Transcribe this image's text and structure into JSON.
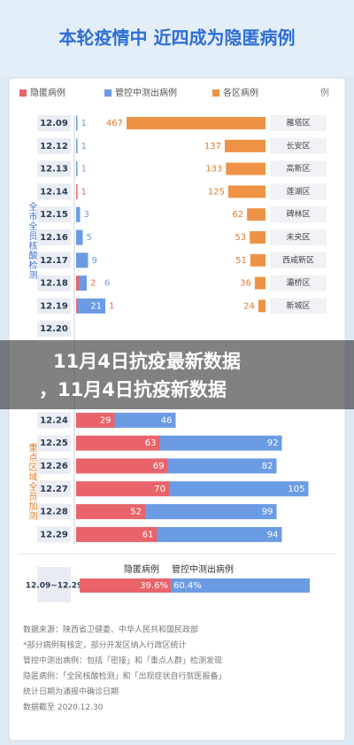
{
  "chart_data": {
    "type": "stacked-hbar",
    "title": "本轮疫情中 近四成为隐匿病例",
    "unit": "例",
    "categories": [
      "12.09",
      "12.12",
      "12.13",
      "12.14",
      "12.15",
      "12.16",
      "12.17",
      "12.18",
      "12.19",
      "12.20",
      null,
      null,
      null,
      "12.24",
      "12.25",
      "12.26",
      "12.27",
      "12.28",
      "12.29"
    ],
    "series": [
      {
        "name": "隐匿病例",
        "color": "#e8646a",
        "values": [
          null,
          null,
          null,
          1,
          null,
          null,
          null,
          2,
          1,
          null,
          null,
          null,
          null,
          29,
          63,
          69,
          70,
          52,
          61
        ]
      },
      {
        "name": "管控中测出病例",
        "color": "#6b9be3",
        "values": [
          1,
          1,
          1,
          null,
          3,
          5,
          9,
          6,
          21,
          null,
          null,
          null,
          null,
          46,
          92,
          82,
          105,
          99,
          94
        ]
      },
      {
        "name": "各区病例",
        "color": "#ee9246",
        "values": [
          467,
          137,
          133,
          125,
          62,
          53,
          51,
          36,
          24,
          null,
          null,
          null,
          null,
          null,
          null,
          null,
          null,
          null,
          null
        ],
        "districts": [
          "雁塔区",
          "长安区",
          "高新区",
          "莲湖区",
          "碑林区",
          "未央区",
          "西咸新区",
          "灞桥区",
          "新城区",
          null,
          null,
          null,
          null,
          null,
          null,
          null,
          null,
          null,
          null
        ]
      }
    ],
    "phases": [
      {
        "label": "全市全员核酸检测",
        "color": "#3b6fd1"
      },
      {
        "label": "重点区域全员加测",
        "color": "#e07b2c"
      }
    ],
    "summary": {
      "period": "12.09~12.29",
      "values": [
        39.6,
        60.4
      ],
      "value_labels": [
        "39.6%",
        "60.4%"
      ]
    },
    "notes": [
      "数据来源：陕西省卫健委、中华人民共和国民政部",
      "*部分病例有核定，部分开发区纳入行政区统计",
      "管控中测出病例：包括「密接」和「重点人群」检测发现",
      "隐匿病例：「全民核酸检测」和「出现症状自行就医报备」",
      "统计日期为通报中确诊日期",
      "数据截至 2020.12.30"
    ],
    "overlay": [
      "11月4日抗疫最新数据",
      "，11月4日抗疫新数据"
    ]
  }
}
